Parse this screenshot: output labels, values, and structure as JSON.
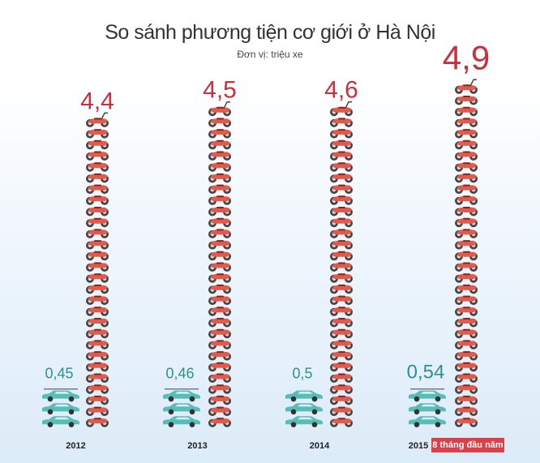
{
  "chart_data": {
    "type": "bar",
    "title": "So sánh phương tiện cơ giới ở Hà Nội",
    "subtitle": "Đơn vị: triệu xe",
    "categories": [
      "2012",
      "2013",
      "2014",
      "2015"
    ],
    "series": [
      {
        "values": [
          0.45,
          0.46,
          0.5,
          0.54
        ],
        "labels": [
          "0,45",
          "0,46",
          "0,5",
          "0,54"
        ],
        "icon": "car-icon"
      },
      {
        "values": [
          4.4,
          4.5,
          4.6,
          4.9
        ],
        "labels": [
          "4,4",
          "4,5",
          "4,6",
          "4,9"
        ],
        "icon": "motorbike-icon"
      }
    ],
    "annotation": "8 tháng đầu năm"
  },
  "colors": {
    "car": "#56bdb8",
    "motorbike": "#e15a4b",
    "car_label": "#2e8f97",
    "motorbike_label": "#c8303d",
    "tag": "#d9404a"
  }
}
